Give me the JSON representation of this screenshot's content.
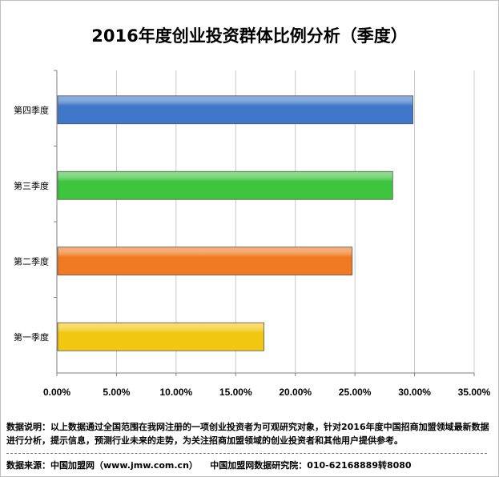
{
  "chart_data": {
    "type": "bar",
    "orientation": "horizontal",
    "title": "2016年度创业投资群体比例分析（季度）",
    "categories": [
      "第四季度",
      "第三季度",
      "第二季度",
      "第一季度"
    ],
    "values": [
      29.8,
      28.1,
      24.7,
      17.3
    ],
    "colors": [
      "#3f78c8",
      "#3ec43e",
      "#f07a22",
      "#f2c712"
    ],
    "xlim": [
      0,
      35
    ],
    "xticks": [
      "0.00%",
      "5.00%",
      "10.00%",
      "15.00%",
      "20.00%",
      "25.00%",
      "30.00%",
      "35.00%"
    ],
    "xtick_values": [
      0,
      5,
      10,
      15,
      20,
      25,
      30,
      35
    ],
    "grid": true,
    "legend": "none"
  },
  "footer": {
    "note": "数据说明：以上数据通过全国范围在我网注册的一项创业投资者为可观研究对象，针对2016年度中国招商加盟领域最新数据进行分析，提示信息，预测行业未来的走势，为关注招商加盟领域的创业投资者和其他用户提供参考。",
    "source": "数据来源：中国加盟网（www.jmw.com.cn）    中国加盟网数据研究院：010-62168889转8080"
  }
}
